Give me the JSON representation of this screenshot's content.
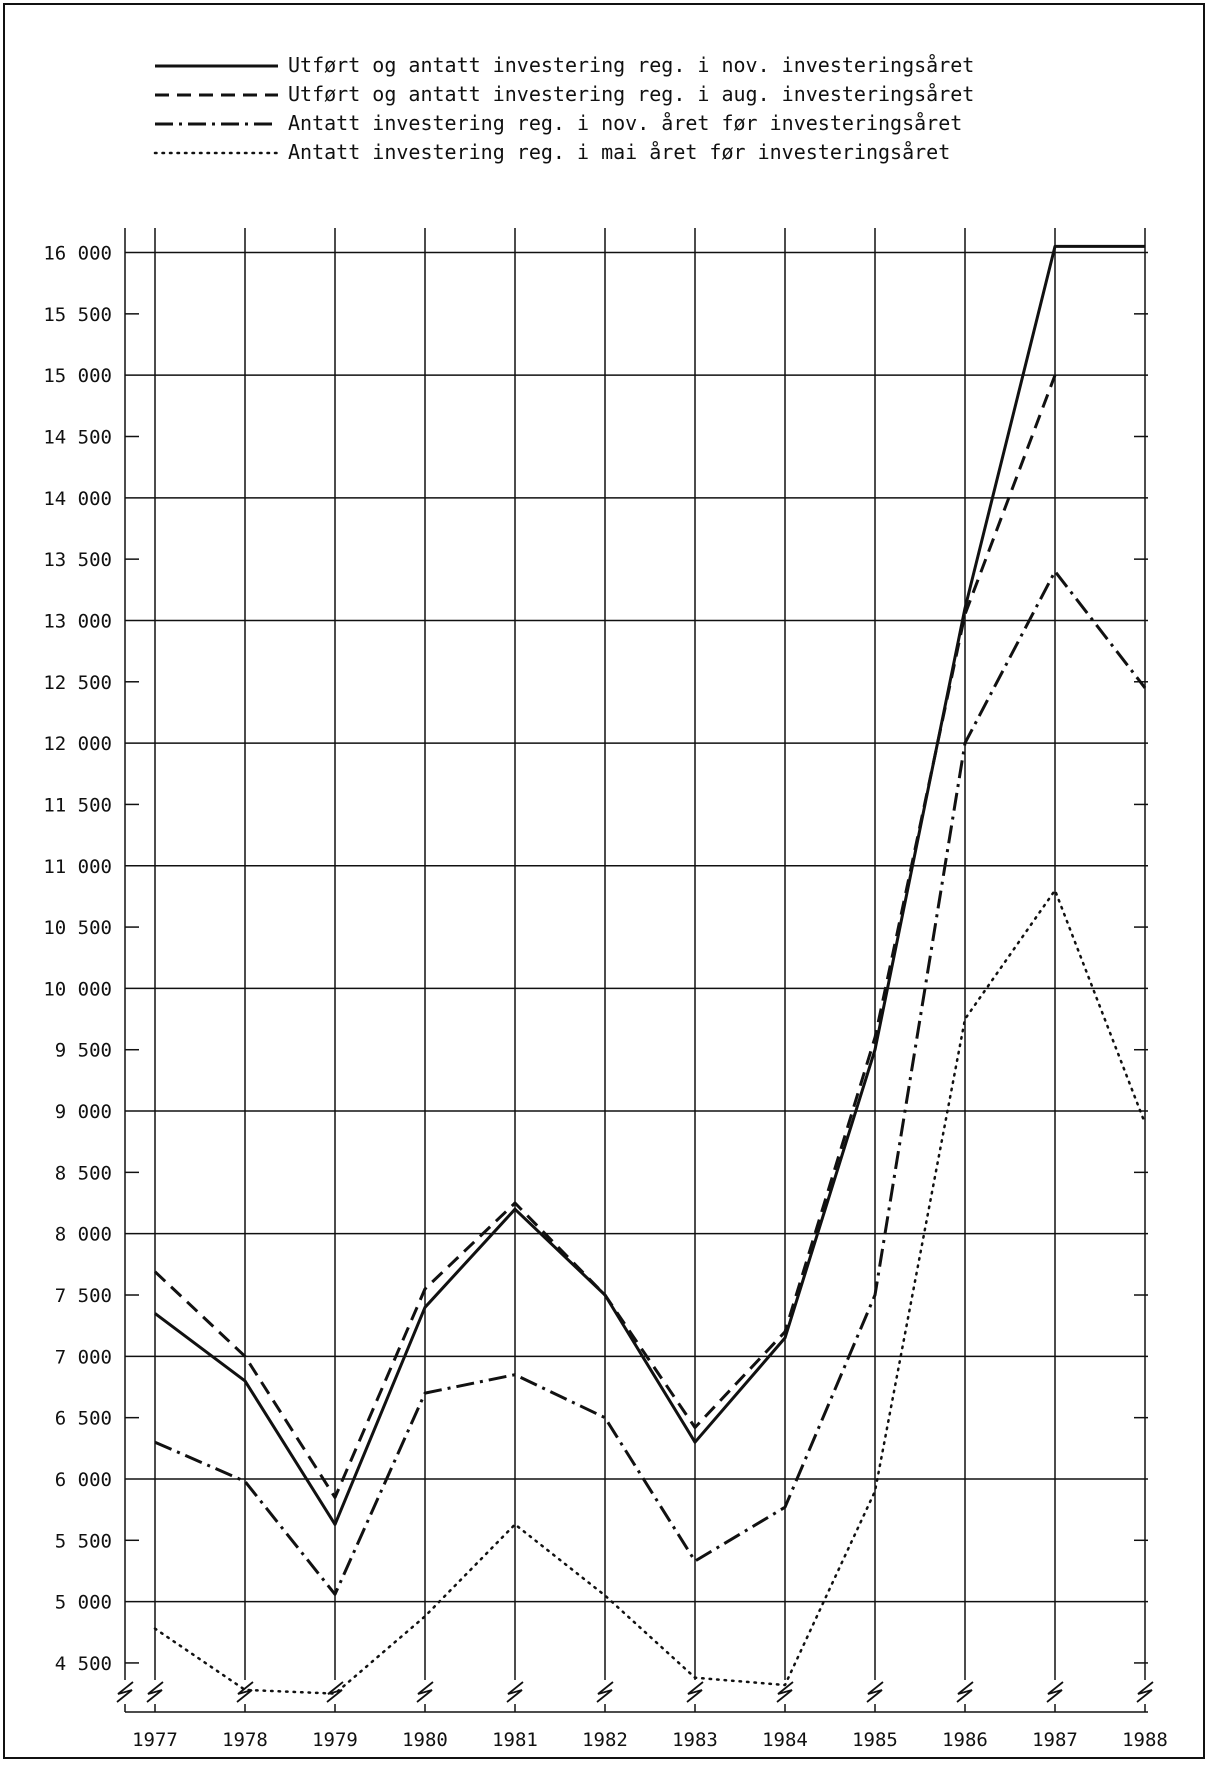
{
  "chart_data": {
    "type": "line",
    "title": "",
    "xlabel": "",
    "ylabel": "",
    "categories": [
      "1977",
      "1978",
      "1979",
      "1980",
      "1981",
      "1982",
      "1983",
      "1984",
      "1985",
      "1986",
      "1987",
      "1988"
    ],
    "y_ticks": [
      "4 500",
      "5 000",
      "5 500",
      "6 000",
      "6 500",
      "7 000",
      "7 500",
      "8 000",
      "8 500",
      "9 000",
      "9 500",
      "10 000",
      "10 500",
      "11 000",
      "11 500",
      "12 000",
      "12 500",
      "13 000",
      "13 500",
      "14 000",
      "14 500",
      "15 000",
      "15 500",
      "16 000"
    ],
    "y_tick_values": [
      4500,
      5000,
      5500,
      6000,
      6500,
      7000,
      7500,
      8000,
      8500,
      9000,
      9500,
      10000,
      10500,
      11000,
      11500,
      12000,
      12500,
      13000,
      13500,
      14000,
      14500,
      15000,
      15500,
      16000
    ],
    "ylim": [
      4100,
      16200
    ],
    "y_axis_break": true,
    "grid": true,
    "legend_position": "top",
    "series": [
      {
        "name": "Utført og antatt investering reg. i nov. investeringsåret",
        "style": "solid",
        "values": [
          7350,
          6800,
          5630,
          7400,
          8200,
          7500,
          6300,
          7150,
          9500,
          13100,
          16050,
          16050
        ]
      },
      {
        "name": "Utført og antatt investering reg. i aug. investeringsåret",
        "style": "dashed",
        "values": [
          7690,
          7000,
          5850,
          7550,
          8250,
          7500,
          6420,
          7200,
          9600,
          13050,
          15000,
          null
        ]
      },
      {
        "name": "Antatt investering reg. i nov. året før investeringsåret",
        "style": "dashdot",
        "values": [
          6300,
          5980,
          5060,
          6700,
          6850,
          6500,
          5330,
          5770,
          7500,
          12000,
          13400,
          12450
        ]
      },
      {
        "name": "Antatt investering reg. i mai året før investeringsåret",
        "style": "dotted",
        "values": [
          4780,
          4280,
          4250,
          4880,
          5630,
          5050,
          4380,
          4320,
          5900,
          9750,
          10800,
          8900
        ]
      }
    ]
  },
  "colors": {
    "ink": "#111111",
    "background": "#ffffff"
  }
}
